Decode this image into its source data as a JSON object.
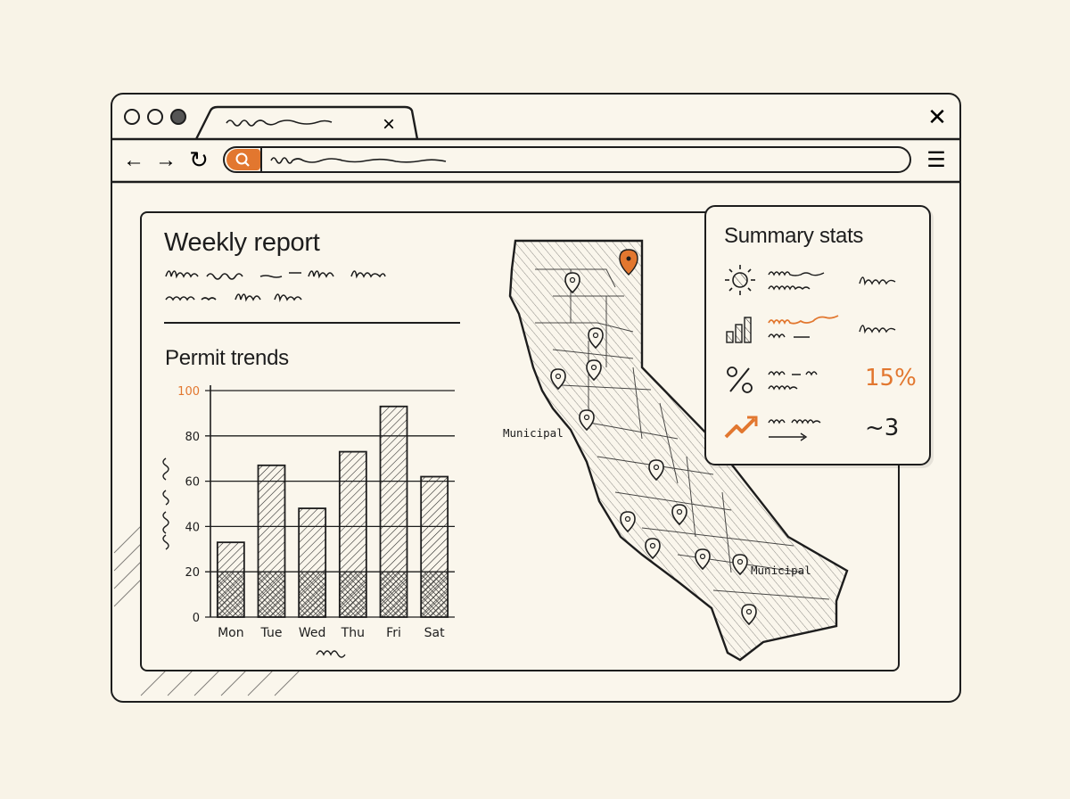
{
  "browser": {
    "close_tab_glyph": "×",
    "close_window_glyph": "✕",
    "menu_glyph": "☰",
    "nav": {
      "back": "←",
      "forward": "→",
      "reload": "↻"
    }
  },
  "report": {
    "title": "Weekly report",
    "chart_section_title": "Permit trends"
  },
  "chart_data": {
    "type": "bar",
    "categories": [
      "Mon",
      "Tue",
      "Wed",
      "Thu",
      "Fri",
      "Sat"
    ],
    "values": [
      33,
      67,
      48,
      73,
      93,
      62
    ],
    "ylim": [
      0,
      100
    ],
    "yticks": [
      "0",
      "20",
      "40",
      "60",
      "80",
      "100"
    ],
    "accent_tick": "100",
    "grid": true
  },
  "map": {
    "labels": [
      "Municipal",
      "Municipal"
    ]
  },
  "summary": {
    "title": "Summary stats",
    "rows": [
      {
        "icon": "sun-icon",
        "value": ""
      },
      {
        "icon": "bar-chart-icon",
        "value": ""
      },
      {
        "icon": "percent-icon",
        "value": "15%"
      },
      {
        "icon": "trend-up-icon",
        "value": "~3"
      }
    ]
  },
  "colors": {
    "accent": "#e2772f",
    "ink": "#1d1d1d",
    "paper": "#f8f3e7"
  }
}
